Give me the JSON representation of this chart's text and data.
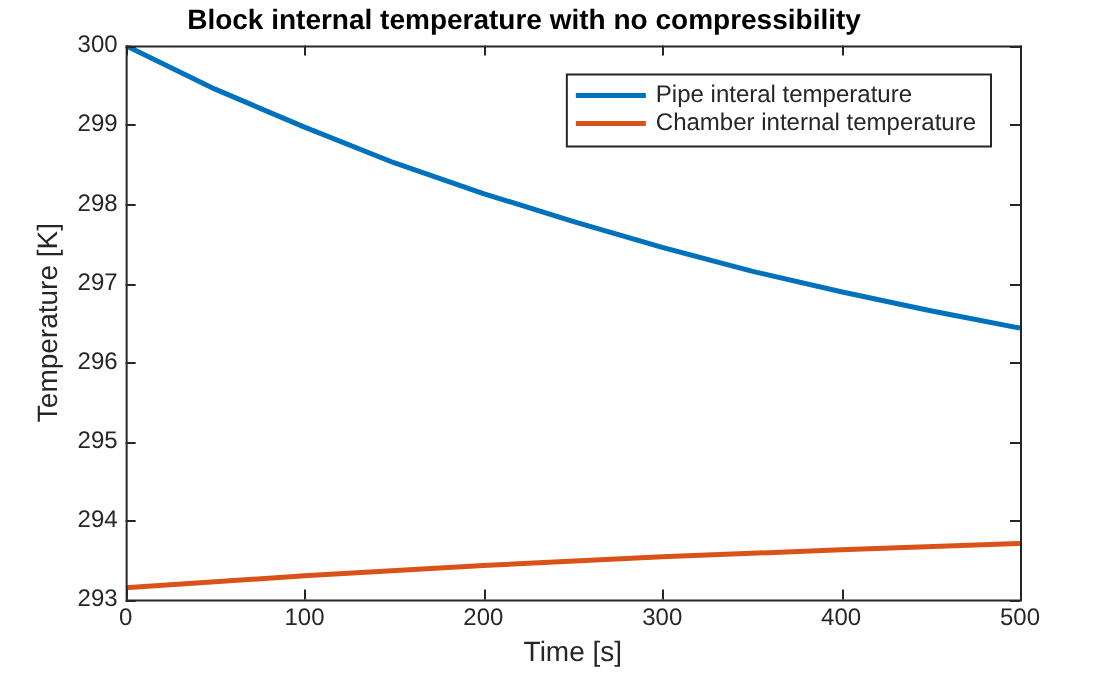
{
  "chart_data": {
    "type": "line",
    "title": "Block internal temperature with no compressibility",
    "xlabel": "Time [s]",
    "ylabel": "Temperature [K]",
    "xlim": [
      0,
      500
    ],
    "xticks": [
      0,
      100,
      200,
      300,
      400,
      500
    ],
    "ylim": [
      293,
      300
    ],
    "yticks": [
      293,
      294,
      295,
      296,
      297,
      298,
      299,
      300
    ],
    "grid": false,
    "legend": "top right",
    "marker": "none",
    "line_style": "solid",
    "series": [
      {
        "name": "Pipe interal temperature",
        "color": "#0072bd",
        "x": [
          0,
          50,
          100,
          150,
          200,
          250,
          300,
          350,
          400,
          450,
          500
        ],
        "values": [
          300,
          299.45,
          298.97,
          298.52,
          298.13,
          297.78,
          297.45,
          297.15,
          296.89,
          296.65,
          296.43
        ]
      },
      {
        "name": "Chamber internal temperature",
        "color": "#d95319",
        "x": [
          0,
          100,
          200,
          300,
          400,
          500
        ],
        "values": [
          293.15,
          293.3,
          293.43,
          293.54,
          293.63,
          293.71
        ]
      }
    ]
  }
}
